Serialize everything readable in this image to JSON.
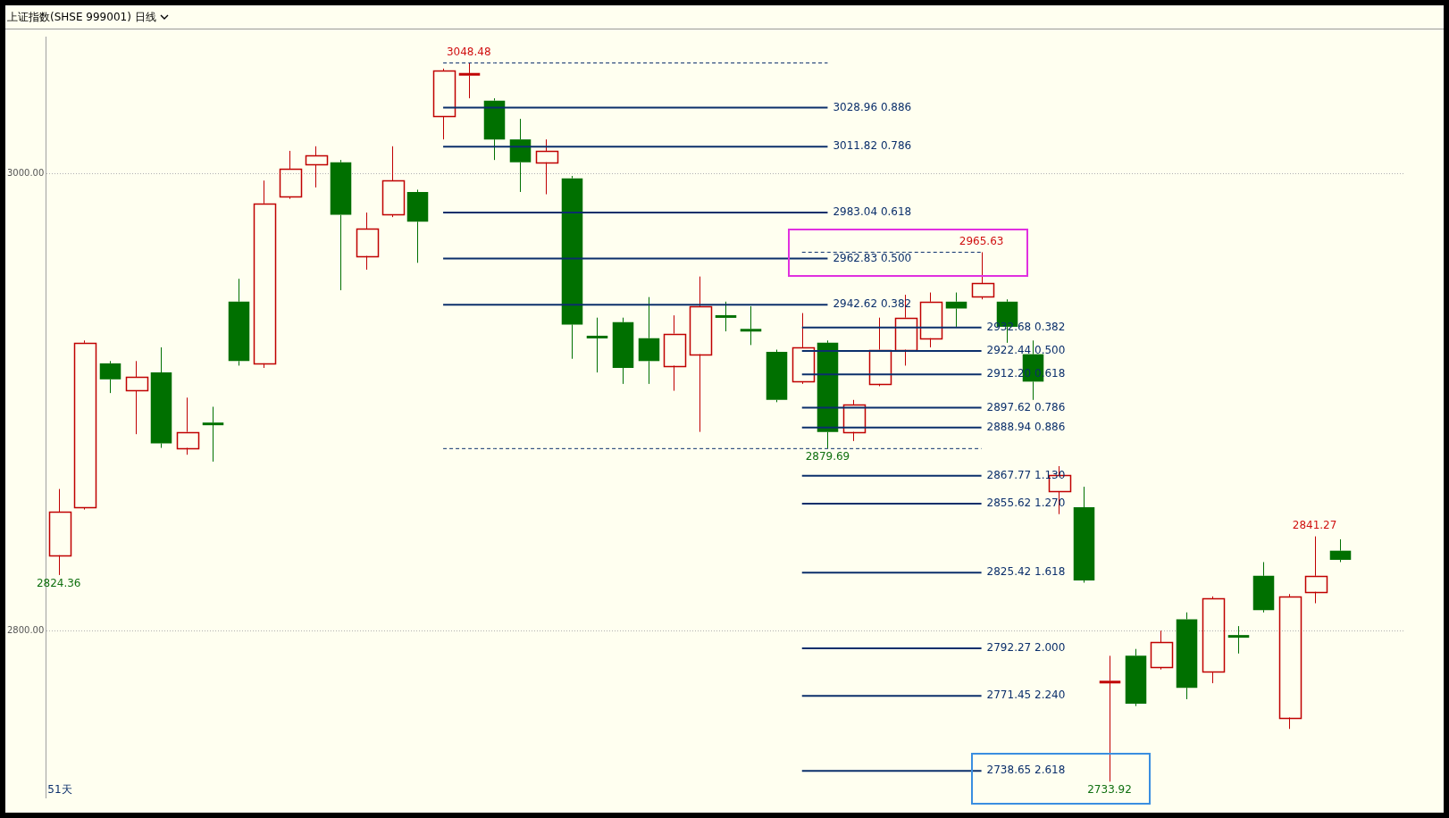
{
  "chart_data": {
    "type": "candlestick",
    "title": "上证指数(SHSE 999001) 日线",
    "categories": [
      null,
      null,
      null,
      null,
      null,
      null,
      null,
      null,
      null,
      null,
      null,
      null,
      null,
      null,
      null,
      null,
      null,
      null,
      null,
      null,
      null,
      null,
      null,
      null,
      null,
      null,
      null,
      null,
      null,
      null,
      null,
      null,
      null,
      null,
      null,
      null,
      null,
      null,
      null,
      null,
      null,
      null,
      null,
      null,
      null,
      null,
      null,
      null,
      null,
      null,
      null,
      null,
      null
    ],
    "ohlc": [
      [
        2833,
        2862,
        2824.36,
        2852
      ],
      [
        2854,
        2927,
        2853,
        2926
      ],
      [
        2917,
        2918,
        2904,
        2910
      ],
      [
        2905,
        2918,
        2886,
        2911
      ],
      [
        2913,
        2924,
        2880,
        2882
      ],
      [
        2880,
        2902,
        2877,
        2887
      ],
      [
        2891,
        2898,
        2874,
        2890
      ],
      [
        2944,
        2954,
        2916,
        2918
      ],
      [
        2917,
        2997,
        2915,
        2987
      ],
      [
        2990,
        3010,
        2989,
        3002
      ],
      [
        3004,
        3012,
        2994,
        3008
      ],
      [
        3005,
        3006,
        2949,
        2982
      ],
      [
        2964,
        2983,
        2958,
        2976
      ],
      [
        2982,
        3012,
        2981,
        2997
      ],
      [
        2992,
        2993,
        2961,
        2979
      ],
      [
        3025,
        3046,
        3015,
        3045
      ],
      [
        3043,
        3048.48,
        3033,
        3044
      ],
      [
        3032,
        3033,
        3006,
        3015
      ],
      [
        3015,
        3024,
        2992,
        3005
      ],
      [
        3005,
        3015,
        2991,
        3010
      ],
      [
        2998,
        2999,
        2919,
        2934
      ],
      [
        2929,
        2937,
        2913,
        2928
      ],
      [
        2935,
        2937,
        2908,
        2915
      ],
      [
        2928,
        2946,
        2908,
        2918
      ],
      [
        2916,
        2938,
        2905,
        2930
      ],
      [
        2921,
        2955,
        2887,
        2942
      ],
      [
        2938,
        2944,
        2931,
        2937
      ],
      [
        2932,
        2942,
        2925,
        2931
      ],
      [
        2922,
        2923,
        2900,
        2901
      ],
      [
        2909,
        2939,
        2908,
        2924
      ],
      [
        2926,
        2927,
        2879.69,
        2887
      ],
      [
        2887,
        2901,
        2883,
        2899
      ],
      [
        2908,
        2937,
        2907,
        2923
      ],
      [
        2923,
        2947,
        2916,
        2937
      ],
      [
        2928,
        2948,
        2924,
        2944
      ],
      [
        2944,
        2948,
        2933,
        2941
      ],
      [
        2946,
        2965.63,
        2945,
        2952
      ],
      [
        2944,
        2945,
        2926,
        2933
      ],
      [
        2921,
        2927,
        2901,
        2909
      ],
      [
        2861,
        2872,
        2851,
        2868
      ],
      [
        2854,
        2863,
        2821,
        2822
      ],
      [
        2777,
        2789,
        2733.92,
        2778
      ],
      [
        2789,
        2792,
        2767,
        2768
      ],
      [
        2784,
        2800,
        2783,
        2795
      ],
      [
        2805,
        2808,
        2770,
        2775
      ],
      [
        2782,
        2815,
        2777,
        2814
      ],
      [
        2798,
        2802,
        2790,
        2797
      ],
      [
        2824,
        2830,
        2808,
        2809
      ],
      [
        2762,
        2816,
        2757,
        2815
      ],
      [
        2817,
        2841.27,
        2812,
        2824
      ],
      [
        2835,
        2840,
        2830,
        2831
      ],
      null,
      null
    ],
    "colors": [
      "#c00000",
      "#c00000",
      "#007000",
      "#c00000",
      "#007000",
      "#c00000",
      "#007000",
      "#007000",
      "#c00000",
      "#c00000",
      "#c00000",
      "#007000",
      "#c00000",
      "#c00000",
      "#007000",
      "#c00000",
      "#c00000",
      "#007000",
      "#007000",
      "#c00000",
      "#007000",
      "#007000",
      "#007000",
      "#007000",
      "#c00000",
      "#c00000",
      "#007000",
      "#007000",
      "#007000",
      "#c00000",
      "#007000",
      "#c00000",
      "#c00000",
      "#c00000",
      "#c00000",
      "#007000",
      "#c00000",
      "#007000",
      "#007000",
      "#c00000",
      "#007000",
      "#c00000",
      "#007000",
      "#c00000",
      "#007000",
      "#c00000",
      "#007000",
      "#007000",
      "#c00000",
      "#c00000",
      "#007000",
      null,
      null
    ],
    "ylim": [
      2727,
      3060
    ],
    "yticks": [
      {
        "value": 3000,
        "label": "3000.00"
      },
      {
        "value": 2800,
        "label": "2800.00"
      }
    ],
    "tick_labels": "y",
    "grid": "y",
    "annotations": [
      {
        "text": "3048.48",
        "y": 3048.48
      },
      {
        "text": "2879.69",
        "y": 2879.69
      },
      {
        "text": "2965.63",
        "y": 2965.63
      },
      {
        "text": "2733.92",
        "y": 2733.92
      },
      {
        "text": "2841.27",
        "y": 2841.27
      },
      {
        "text": "2824.36",
        "y": 2824.36
      },
      "51天"
    ],
    "series": [
      {
        "type": "line",
        "name": "3028.96 0.886",
        "color": "#0b2f6b",
        "values": [
          null,
          null,
          null,
          null,
          null,
          null,
          null,
          null,
          null,
          null,
          null,
          null,
          null,
          null,
          null,
          3028.96,
          3028.96,
          3028.96,
          3028.96,
          3028.96,
          3028.96,
          3028.96,
          3028.96,
          3028.96,
          3028.96,
          3028.96,
          3028.96,
          3028.96,
          3028.96,
          3028.96,
          3028.96,
          null,
          null,
          null,
          null,
          null,
          null,
          null,
          null,
          null,
          null,
          null,
          null,
          null,
          null,
          null,
          null,
          null,
          null,
          null,
          null,
          null,
          null
        ]
      },
      {
        "type": "line",
        "name": "3011.82 0.786",
        "color": "#0b2f6b",
        "values": [
          null,
          null,
          null,
          null,
          null,
          null,
          null,
          null,
          null,
          null,
          null,
          null,
          null,
          null,
          null,
          3011.82,
          3011.82,
          3011.82,
          3011.82,
          3011.82,
          3011.82,
          3011.82,
          3011.82,
          3011.82,
          3011.82,
          3011.82,
          3011.82,
          3011.82,
          3011.82,
          3011.82,
          3011.82,
          null,
          null,
          null,
          null,
          null,
          null,
          null,
          null,
          null,
          null,
          null,
          null,
          null,
          null,
          null,
          null,
          null,
          null,
          null,
          null,
          null,
          null
        ]
      },
      {
        "type": "line",
        "name": "2983.04 0.618",
        "color": "#0b2f6b",
        "values": [
          null,
          null,
          null,
          null,
          null,
          null,
          null,
          null,
          null,
          null,
          null,
          null,
          null,
          null,
          null,
          2983.04,
          2983.04,
          2983.04,
          2983.04,
          2983.04,
          2983.04,
          2983.04,
          2983.04,
          2983.04,
          2983.04,
          2983.04,
          2983.04,
          2983.04,
          2983.04,
          2983.04,
          2983.04,
          null,
          null,
          null,
          null,
          null,
          null,
          null,
          null,
          null,
          null,
          null,
          null,
          null,
          null,
          null,
          null,
          null,
          null,
          null,
          null,
          null,
          null
        ]
      },
      {
        "type": "line",
        "name": "2962.83 0.500",
        "color": "#0b2f6b",
        "values": [
          null,
          null,
          null,
          null,
          null,
          null,
          null,
          null,
          null,
          null,
          null,
          null,
          null,
          null,
          null,
          2962.83,
          2962.83,
          2962.83,
          2962.83,
          2962.83,
          2962.83,
          2962.83,
          2962.83,
          2962.83,
          2962.83,
          2962.83,
          2962.83,
          2962.83,
          2962.83,
          2962.83,
          2962.83,
          null,
          null,
          null,
          null,
          null,
          null,
          null,
          null,
          null,
          null,
          null,
          null,
          null,
          null,
          null,
          null,
          null,
          null,
          null,
          null,
          null,
          null
        ]
      },
      {
        "type": "line",
        "name": "2942.62 0.382",
        "color": "#0b2f6b",
        "values": [
          null,
          null,
          null,
          null,
          null,
          null,
          null,
          null,
          null,
          null,
          null,
          null,
          null,
          null,
          null,
          2942.62,
          2942.62,
          2942.62,
          2942.62,
          2942.62,
          2942.62,
          2942.62,
          2942.62,
          2942.62,
          2942.62,
          2942.62,
          2942.62,
          2942.62,
          2942.62,
          2942.62,
          2942.62,
          null,
          null,
          null,
          null,
          null,
          null,
          null,
          null,
          null,
          null,
          null,
          null,
          null,
          null,
          null,
          null,
          null,
          null,
          null,
          null,
          null,
          null
        ]
      },
      {
        "type": "line",
        "name": "2932.68 0.382",
        "color": "#0b2f6b",
        "values": [
          null,
          null,
          null,
          null,
          null,
          null,
          null,
          null,
          null,
          null,
          null,
          null,
          null,
          null,
          null,
          null,
          null,
          null,
          null,
          null,
          null,
          null,
          null,
          null,
          null,
          null,
          null,
          null,
          null,
          2932.68,
          2932.68,
          2932.68,
          2932.68,
          2932.68,
          2932.68,
          2932.68,
          2932.68,
          null,
          null,
          null,
          null,
          null,
          null,
          null,
          null,
          null,
          null,
          null,
          null,
          null,
          null,
          null,
          null
        ]
      },
      {
        "type": "line",
        "name": "2922.44 0.500",
        "color": "#0b2f6b",
        "values": [
          null,
          null,
          null,
          null,
          null,
          null,
          null,
          null,
          null,
          null,
          null,
          null,
          null,
          null,
          null,
          null,
          null,
          null,
          null,
          null,
          null,
          null,
          null,
          null,
          null,
          null,
          null,
          null,
          null,
          2922.44,
          2922.44,
          2922.44,
          2922.44,
          2922.44,
          2922.44,
          2922.44,
          2922.44,
          null,
          null,
          null,
          null,
          null,
          null,
          null,
          null,
          null,
          null,
          null,
          null,
          null,
          null,
          null,
          null
        ]
      },
      {
        "type": "line",
        "name": "2912.20 0.618",
        "color": "#0b2f6b",
        "values": [
          null,
          null,
          null,
          null,
          null,
          null,
          null,
          null,
          null,
          null,
          null,
          null,
          null,
          null,
          null,
          null,
          null,
          null,
          null,
          null,
          null,
          null,
          null,
          null,
          null,
          null,
          null,
          null,
          null,
          2912.2,
          2912.2,
          2912.2,
          2912.2,
          2912.2,
          2912.2,
          2912.2,
          2912.2,
          null,
          null,
          null,
          null,
          null,
          null,
          null,
          null,
          null,
          null,
          null,
          null,
          null,
          null,
          null,
          null
        ]
      },
      {
        "type": "line",
        "name": "2897.62 0.786",
        "color": "#0b2f6b",
        "values": [
          null,
          null,
          null,
          null,
          null,
          null,
          null,
          null,
          null,
          null,
          null,
          null,
          null,
          null,
          null,
          null,
          null,
          null,
          null,
          null,
          null,
          null,
          null,
          null,
          null,
          null,
          null,
          null,
          null,
          2897.62,
          2897.62,
          2897.62,
          2897.62,
          2897.62,
          2897.62,
          2897.62,
          2897.62,
          null,
          null,
          null,
          null,
          null,
          null,
          null,
          null,
          null,
          null,
          null,
          null,
          null,
          null,
          null,
          null
        ]
      },
      {
        "type": "line",
        "name": "2888.94 0.886",
        "color": "#0b2f6b",
        "values": [
          null,
          null,
          null,
          null,
          null,
          null,
          null,
          null,
          null,
          null,
          null,
          null,
          null,
          null,
          null,
          null,
          null,
          null,
          null,
          null,
          null,
          null,
          null,
          null,
          null,
          null,
          null,
          null,
          null,
          2888.94,
          2888.94,
          2888.94,
          2888.94,
          2888.94,
          2888.94,
          2888.94,
          2888.94,
          null,
          null,
          null,
          null,
          null,
          null,
          null,
          null,
          null,
          null,
          null,
          null,
          null,
          null,
          null,
          null
        ]
      },
      {
        "type": "line",
        "name": "2867.77 1.130",
        "color": "#0b2f6b",
        "values": [
          null,
          null,
          null,
          null,
          null,
          null,
          null,
          null,
          null,
          null,
          null,
          null,
          null,
          null,
          null,
          null,
          null,
          null,
          null,
          null,
          null,
          null,
          null,
          null,
          null,
          null,
          null,
          null,
          null,
          2867.77,
          2867.77,
          2867.77,
          2867.77,
          2867.77,
          2867.77,
          2867.77,
          2867.77,
          null,
          null,
          null,
          null,
          null,
          null,
          null,
          null,
          null,
          null,
          null,
          null,
          null,
          null,
          null,
          null
        ]
      },
      {
        "type": "line",
        "name": "2855.62 1.270",
        "color": "#0b2f6b",
        "values": [
          null,
          null,
          null,
          null,
          null,
          null,
          null,
          null,
          null,
          null,
          null,
          null,
          null,
          null,
          null,
          null,
          null,
          null,
          null,
          null,
          null,
          null,
          null,
          null,
          null,
          null,
          null,
          null,
          null,
          2855.62,
          2855.62,
          2855.62,
          2855.62,
          2855.62,
          2855.62,
          2855.62,
          2855.62,
          null,
          null,
          null,
          null,
          null,
          null,
          null,
          null,
          null,
          null,
          null,
          null,
          null,
          null,
          null,
          null
        ]
      },
      {
        "type": "line",
        "name": "2825.42 1.618",
        "color": "#0b2f6b",
        "values": [
          null,
          null,
          null,
          null,
          null,
          null,
          null,
          null,
          null,
          null,
          null,
          null,
          null,
          null,
          null,
          null,
          null,
          null,
          null,
          null,
          null,
          null,
          null,
          null,
          null,
          null,
          null,
          null,
          null,
          2825.42,
          2825.42,
          2825.42,
          2825.42,
          2825.42,
          2825.42,
          2825.42,
          2825.42,
          null,
          null,
          null,
          null,
          null,
          null,
          null,
          null,
          null,
          null,
          null,
          null,
          null,
          null,
          null,
          null
        ]
      },
      {
        "type": "line",
        "name": "2792.27 2.000",
        "color": "#0b2f6b",
        "values": [
          null,
          null,
          null,
          null,
          null,
          null,
          null,
          null,
          null,
          null,
          null,
          null,
          null,
          null,
          null,
          null,
          null,
          null,
          null,
          null,
          null,
          null,
          null,
          null,
          null,
          null,
          null,
          null,
          null,
          2792.27,
          2792.27,
          2792.27,
          2792.27,
          2792.27,
          2792.27,
          2792.27,
          2792.27,
          null,
          null,
          null,
          null,
          null,
          null,
          null,
          null,
          null,
          null,
          null,
          null,
          null,
          null,
          null,
          null
        ]
      },
      {
        "type": "line",
        "name": "2771.45 2.240",
        "color": "#0b2f6b",
        "values": [
          null,
          null,
          null,
          null,
          null,
          null,
          null,
          null,
          null,
          null,
          null,
          null,
          null,
          null,
          null,
          null,
          null,
          null,
          null,
          null,
          null,
          null,
          null,
          null,
          null,
          null,
          null,
          null,
          null,
          2771.45,
          2771.45,
          2771.45,
          2771.45,
          2771.45,
          2771.45,
          2771.45,
          2771.45,
          null,
          null,
          null,
          null,
          null,
          null,
          null,
          null,
          null,
          null,
          null,
          null,
          null,
          null,
          null,
          null
        ]
      },
      {
        "type": "line",
        "name": "2738.65 2.618",
        "color": "#0b2f6b",
        "values": [
          null,
          null,
          null,
          null,
          null,
          null,
          null,
          null,
          null,
          null,
          null,
          null,
          null,
          null,
          null,
          null,
          null,
          null,
          null,
          null,
          null,
          null,
          null,
          null,
          null,
          null,
          null,
          null,
          null,
          2738.65,
          2738.65,
          2738.65,
          2738.65,
          2738.65,
          2738.65,
          2738.65,
          2738.65,
          null,
          null,
          null,
          null,
          null,
          null,
          null,
          null,
          null,
          null,
          null,
          null,
          null,
          null,
          null,
          null
        ]
      },
      {
        "type": "line",
        "color": "#0b2f6b",
        "line_style": "dashed",
        "values": [
          null,
          null,
          null,
          null,
          null,
          null,
          null,
          null,
          null,
          null,
          null,
          null,
          null,
          null,
          null,
          3048.48,
          3048.48,
          3048.48,
          3048.48,
          3048.48,
          3048.48,
          3048.48,
          3048.48,
          3048.48,
          3048.48,
          3048.48,
          3048.48,
          3048.48,
          3048.48,
          3048.48,
          3048.48,
          null,
          null,
          null,
          null,
          null,
          null,
          null,
          null,
          null,
          null,
          null,
          null,
          null,
          null,
          null,
          null,
          null,
          null,
          null,
          null,
          null,
          null
        ]
      },
      {
        "type": "line",
        "color": "#0b2f6b",
        "line_style": "dashed",
        "values": [
          null,
          null,
          null,
          null,
          null,
          null,
          null,
          null,
          null,
          null,
          null,
          null,
          null,
          null,
          null,
          2879.69,
          2879.69,
          2879.69,
          2879.69,
          2879.69,
          2879.69,
          2879.69,
          2879.69,
          2879.69,
          2879.69,
          2879.69,
          2879.69,
          2879.69,
          2879.69,
          2879.69,
          2879.69,
          2879.69,
          2879.69,
          2879.69,
          2879.69,
          2879.69,
          2879.69,
          null,
          null,
          null,
          null,
          null,
          null,
          null,
          null,
          null,
          null,
          null,
          null,
          null,
          null,
          null,
          null
        ]
      },
      {
        "type": "line",
        "color": "#0b2f6b",
        "line_style": "dashed",
        "values": [
          null,
          null,
          null,
          null,
          null,
          null,
          null,
          null,
          null,
          null,
          null,
          null,
          null,
          null,
          null,
          null,
          null,
          null,
          null,
          null,
          null,
          null,
          null,
          null,
          null,
          null,
          null,
          null,
          null,
          2965.63,
          2965.63,
          2965.63,
          2965.63,
          2965.63,
          2965.63,
          2965.63,
          2965.63,
          null,
          null,
          null,
          null,
          null,
          null,
          null,
          null,
          null,
          null,
          null,
          null,
          null,
          null,
          null,
          null
        ]
      }
    ]
  }
}
